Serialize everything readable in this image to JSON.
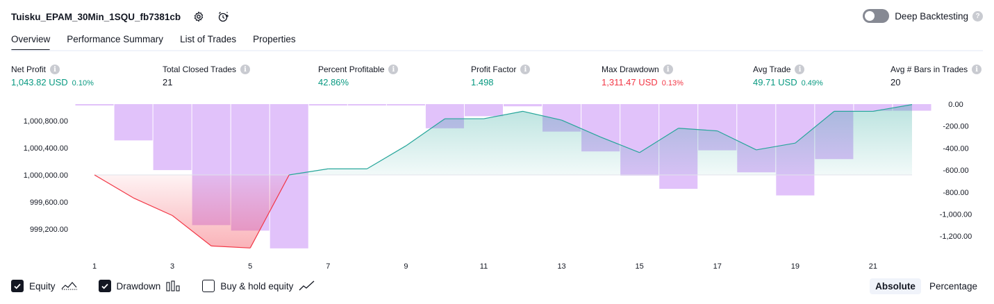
{
  "header": {
    "title": "Tuisku_EPAM_30Min_1SQU_fb7381cb",
    "settings_icon": "gear-icon",
    "alert_icon": "alarm-add-icon"
  },
  "deep_backtesting": {
    "label": "Deep Backtesting",
    "enabled": false
  },
  "tabs": [
    {
      "label": "Overview",
      "active": true
    },
    {
      "label": "Performance Summary",
      "active": false
    },
    {
      "label": "List of Trades",
      "active": false
    },
    {
      "label": "Properties",
      "active": false
    }
  ],
  "metrics": [
    {
      "label": "Net Profit",
      "value": "1,043.82 USD",
      "pct": "0.10%",
      "tone": "pos"
    },
    {
      "label": "Total Closed Trades",
      "value": "21",
      "pct": "",
      "tone": ""
    },
    {
      "label": "Percent Profitable",
      "value": "42.86%",
      "pct": "",
      "tone": "pos"
    },
    {
      "label": "Profit Factor",
      "value": "1.498",
      "pct": "",
      "tone": "pos"
    },
    {
      "label": "Max Drawdown",
      "value": "1,311.47 USD",
      "pct": "0.13%",
      "tone": "neg"
    },
    {
      "label": "Avg Trade",
      "value": "49.71 USD",
      "pct": "0.49%",
      "tone": "pos"
    },
    {
      "label": "Avg # Bars in Trades",
      "value": "20",
      "pct": "",
      "tone": ""
    }
  ],
  "chart_data": {
    "type": "line",
    "title": "",
    "x": [
      1,
      2,
      3,
      4,
      5,
      6,
      7,
      8,
      9,
      10,
      11,
      12,
      13,
      14,
      15,
      16,
      17,
      18,
      19,
      20,
      21,
      22
    ],
    "x_tick_labels": [
      "1",
      "3",
      "5",
      "7",
      "9",
      "11",
      "13",
      "15",
      "17",
      "19",
      "21"
    ],
    "series": [
      {
        "name": "Equity",
        "axis": "left",
        "color": "#26a69a",
        "values": [
          1000000,
          999660,
          999400,
          998950,
          998920,
          1000000,
          1000090,
          1000090,
          1000430,
          1000830,
          1000830,
          1000940,
          1000810,
          1000560,
          1000330,
          1000690,
          1000650,
          1000370,
          1000470,
          1000940,
          1000940,
          1001040
        ]
      },
      {
        "name": "Drawdown",
        "axis": "right",
        "color": "#c990f5",
        "values": [
          0,
          -330,
          -600,
          -1100,
          -1150,
          -1311.47,
          -10,
          0,
          -10,
          -220,
          -110,
          -20,
          -250,
          -430,
          -650,
          -770,
          -420,
          -620,
          -830,
          -500,
          -60,
          -60
        ]
      }
    ],
    "left_axis": {
      "ticks": [
        "1,000,800.00",
        "1,000,400.00",
        "1,000,000.00",
        "999,600.00",
        "999,200.00"
      ],
      "tick_values": [
        1000800,
        1000400,
        1000000,
        999600,
        999200
      ]
    },
    "right_axis": {
      "ticks": [
        "0.00",
        "-200.00",
        "-400.00",
        "-600.00",
        "-800.00",
        "-1,000.00",
        "-1,200.00"
      ],
      "tick_values": [
        0,
        -200,
        -400,
        -600,
        -800,
        -1000,
        -1200
      ]
    },
    "baseline": 1000000,
    "grid": false
  },
  "legend": {
    "items": [
      {
        "label": "Equity",
        "checked": true,
        "icon": "equity-line-icon"
      },
      {
        "label": "Drawdown",
        "checked": true,
        "icon": "drawdown-bars-icon"
      },
      {
        "label": "Buy & hold equity",
        "checked": false,
        "icon": "buy-hold-line-icon"
      }
    ]
  },
  "mode": {
    "options": [
      "Absolute",
      "Percentage"
    ],
    "active": "Absolute"
  }
}
